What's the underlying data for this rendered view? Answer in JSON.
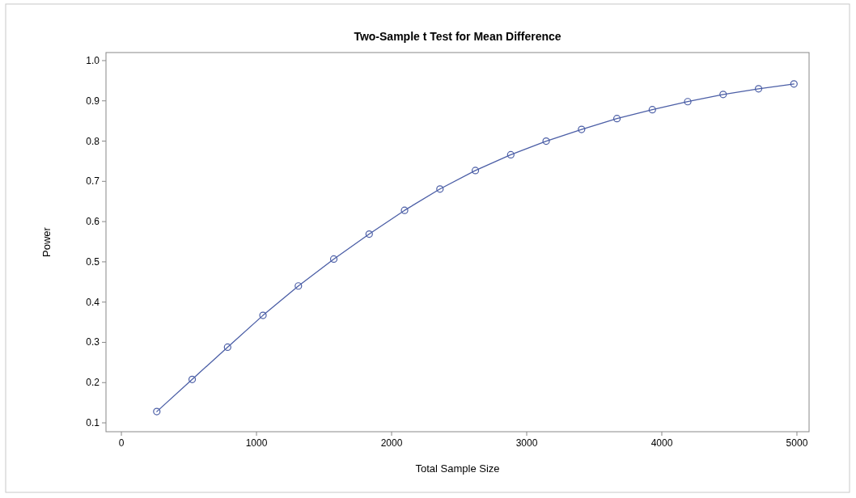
{
  "chart_data": {
    "type": "line",
    "title": "Two-Sample t Test for Mean Difference",
    "xlabel": "Total Sample Size",
    "ylabel": "Power",
    "x": [
      262,
      524,
      786,
      1048,
      1310,
      1572,
      1834,
      2096,
      2358,
      2620,
      2882,
      3144,
      3406,
      3668,
      3930,
      4192,
      4454,
      4716,
      4978
    ],
    "series": [
      {
        "color": "#4b5ea6",
        "values": [
          0.128,
          0.208,
          0.288,
          0.367,
          0.44,
          0.507,
          0.569,
          0.628,
          0.681,
          0.727,
          0.766,
          0.8,
          0.829,
          0.856,
          0.878,
          0.898,
          0.916,
          0.93,
          0.942
        ]
      }
    ],
    "xlim": [
      -114,
      5090
    ],
    "xticks": [
      0,
      1000,
      2000,
      3000,
      4000,
      5000
    ],
    "ylim": [
      0.078,
      1.02
    ],
    "yticks": [
      {
        "value": 0.1,
        "label": "0.1"
      },
      {
        "value": 0.2,
        "label": "0.2"
      },
      {
        "value": 0.3,
        "label": "0.3"
      },
      {
        "value": 0.4,
        "label": "0.4"
      },
      {
        "value": 0.5,
        "label": "0.5"
      },
      {
        "value": 0.6,
        "label": "0.6"
      },
      {
        "value": 0.7,
        "label": "0.7"
      },
      {
        "value": 0.8,
        "label": "0.8"
      },
      {
        "value": 0.9,
        "label": "0.9"
      },
      {
        "value": 1.0,
        "label": "1.0"
      }
    ],
    "marker": "circle",
    "line_style": "solid",
    "grid": false
  }
}
